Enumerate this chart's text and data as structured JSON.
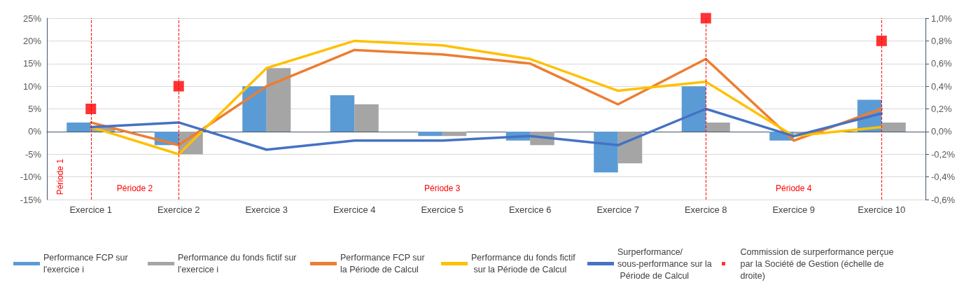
{
  "chart_data": {
    "type": "bar",
    "categories": [
      "Exercice 1",
      "Exercice 2",
      "Exercice 3",
      "Exercice 4",
      "Exercice 5",
      "Exercice 6",
      "Exercice 7",
      "Exercice 8",
      "Exercice 9",
      "Exercice 10"
    ],
    "series": [
      {
        "name": "Performance FCP sur l'exercice i",
        "color": "#5b9bd5",
        "values": [
          2,
          -3,
          10,
          8,
          -1,
          -2,
          -9,
          10,
          -2,
          7
        ]
      },
      {
        "name": "Performance du fonds fictif sur l'exercice i",
        "color": "#a5a5a5",
        "values": [
          1,
          -5,
          14,
          6,
          -1,
          -3,
          -7,
          2,
          -0.5,
          2
        ]
      },
      {
        "name": "Performance FCP sur la Période de Calcul",
        "type": "line",
        "color": "#ed7d31",
        "marker": "none",
        "values": [
          2,
          -3,
          10,
          18,
          17,
          15,
          6,
          16,
          -2,
          5
        ]
      },
      {
        "name": "Performance du fonds fictif sur la Période de Calcul",
        "type": "line",
        "color": "#ffc000",
        "marker": "none",
        "values": [
          1,
          -5,
          14,
          20,
          19,
          16,
          9,
          11,
          -1,
          1
        ]
      },
      {
        "name": "Surperformance/ sous-performance sur la Période de Calcul",
        "type": "line",
        "color": "#4472c4",
        "marker": "none",
        "values": [
          1,
          2,
          -4,
          -2,
          -2,
          -1,
          -3,
          5,
          -1,
          4
        ]
      },
      {
        "name": "Commission de surperformance perçue par la Société de Gestion (échelle de droite)",
        "type": "scatter",
        "axis": "y2",
        "color": "#ff0000",
        "marker": "square",
        "values": [
          0.2,
          0.4,
          null,
          null,
          null,
          null,
          null,
          1.0,
          null,
          0.8
        ]
      }
    ],
    "ylim": [
      -15,
      25
    ],
    "yticks": [
      {
        "value": -15,
        "label": "-15%"
      },
      {
        "value": -10,
        "label": "-10%"
      },
      {
        "value": -5,
        "label": "-5%"
      },
      {
        "value": 0,
        "label": "0%"
      },
      {
        "value": 5,
        "label": "5%"
      },
      {
        "value": 10,
        "label": "10%"
      },
      {
        "value": 15,
        "label": "15%"
      },
      {
        "value": 20,
        "label": "20%"
      },
      {
        "value": 25,
        "label": "25%"
      }
    ],
    "y2lim": [
      -0.6,
      1.0
    ],
    "y2ticks": [
      {
        "value": -0.6,
        "label": "-0,6%"
      },
      {
        "value": -0.4,
        "label": "-0,4%"
      },
      {
        "value": -0.2,
        "label": "-0,2%"
      },
      {
        "value": 0,
        "label": "0,0%"
      },
      {
        "value": 0.2,
        "label": "0,2%"
      },
      {
        "value": 0.4,
        "label": "0,4%"
      },
      {
        "value": 0.6,
        "label": "0,6%"
      },
      {
        "value": 0.8,
        "label": "0,8%"
      },
      {
        "value": 1.0,
        "label": "1,0%"
      }
    ],
    "ref_lines": [
      {
        "axis": "x",
        "value": "Exercice 1",
        "color": "#ff0000",
        "line_style": "dashed"
      },
      {
        "axis": "x",
        "value": "Exercice 2",
        "color": "#ff0000",
        "line_style": "dashed"
      },
      {
        "axis": "x",
        "value": "Exercice 8",
        "color": "#ff0000",
        "line_style": "dashed"
      },
      {
        "axis": "x",
        "value": "Exercice 10",
        "color": "#ff0000",
        "line_style": "dashed"
      }
    ],
    "annotations": [
      "Période 1",
      "Période 2",
      "Période 3",
      "Période 4"
    ],
    "grid": "y",
    "legend": "bottom"
  }
}
